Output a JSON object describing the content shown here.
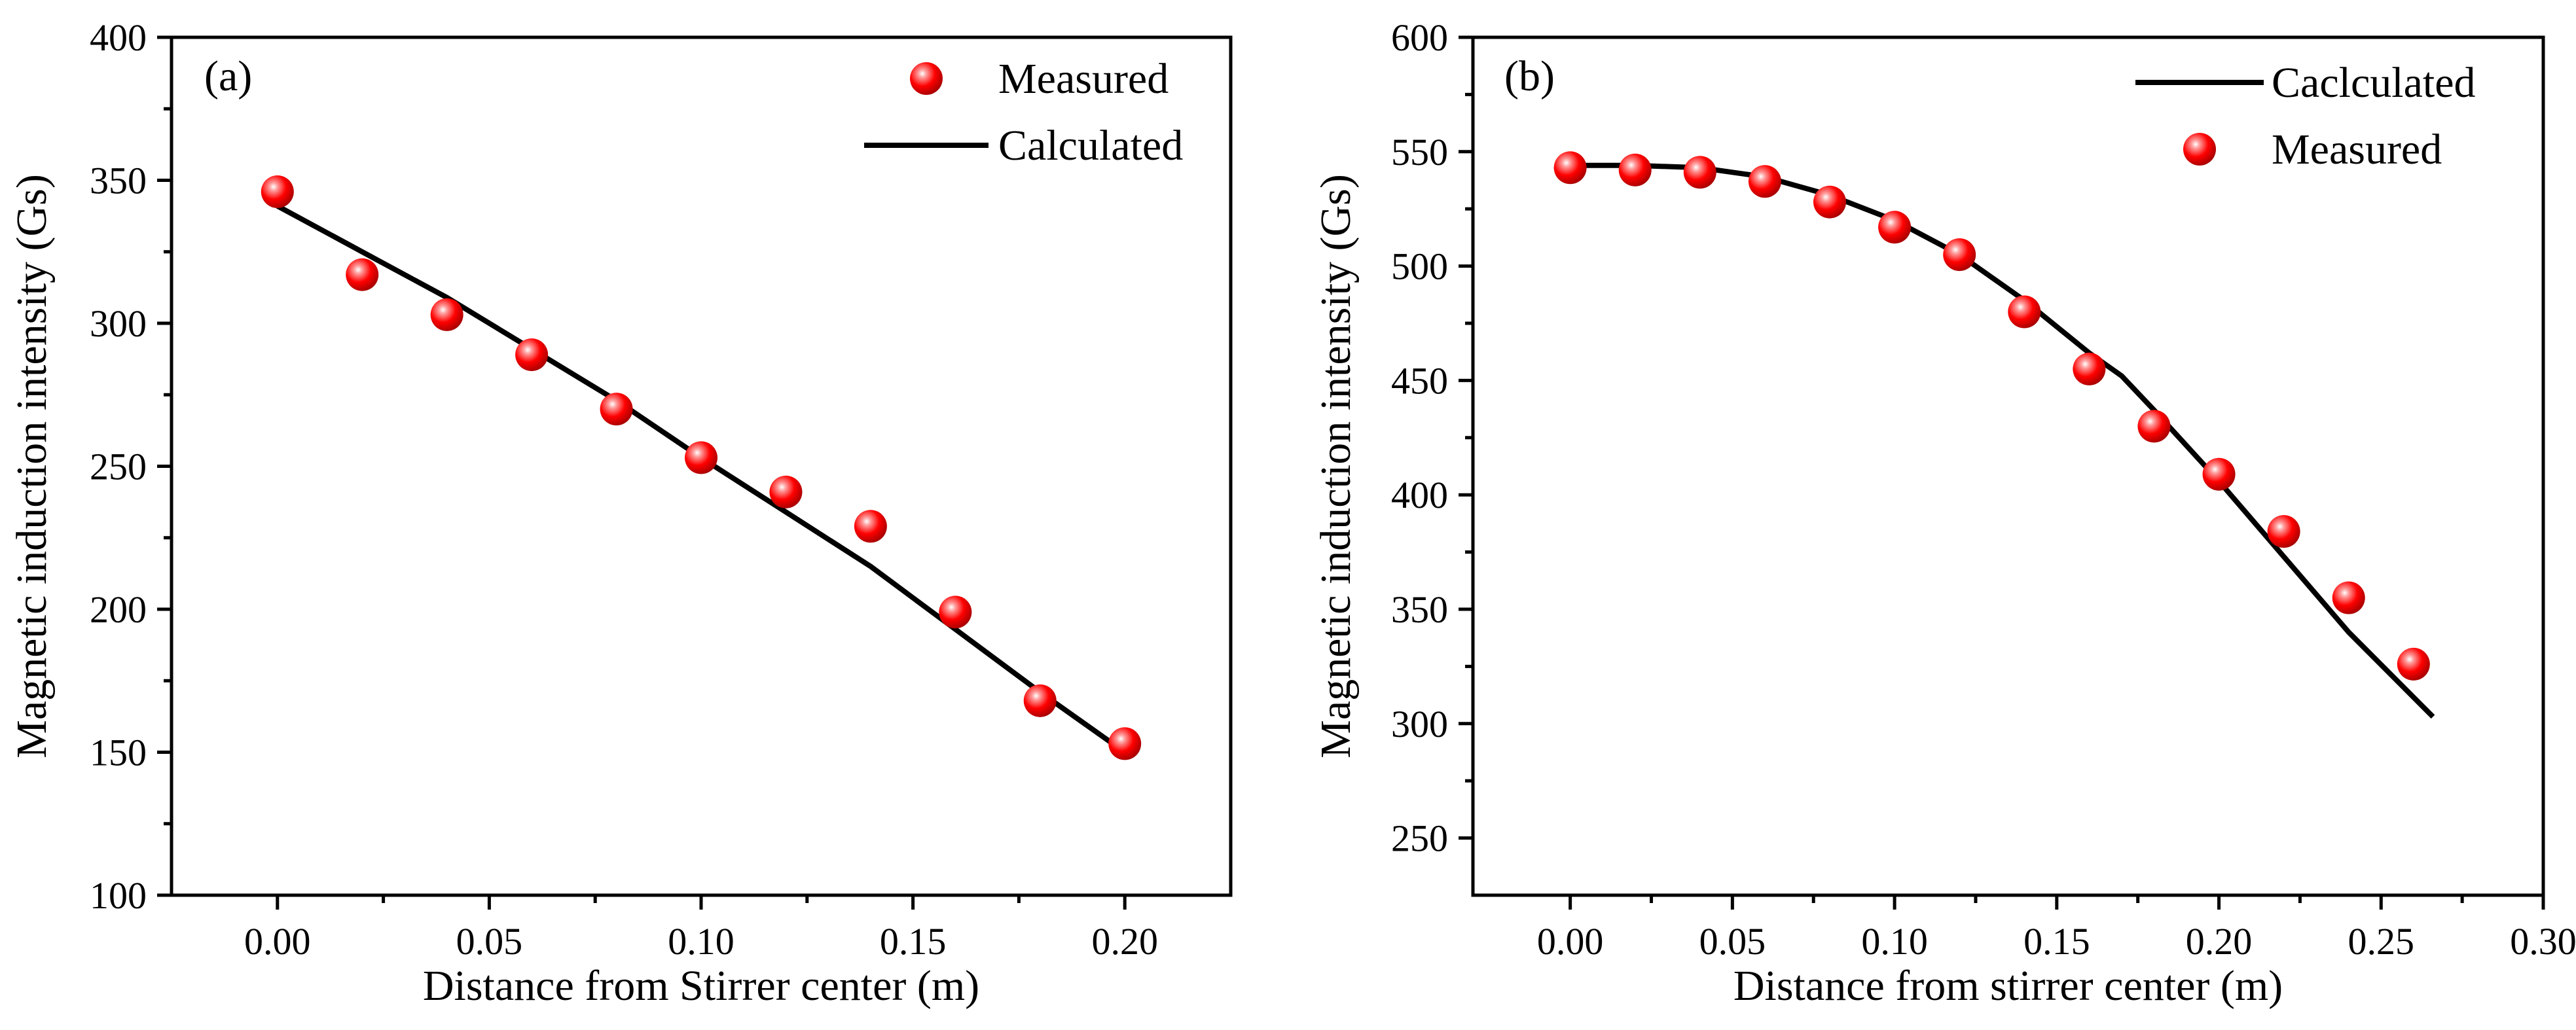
{
  "chart_data": [
    {
      "type": "line",
      "panel_label": "(a)",
      "xlabel": "Distance from Stirrer center (m)",
      "ylabel": "Magnetic induction intensity (Gs)",
      "xlim": [
        -0.025,
        0.225
      ],
      "ylim": [
        100,
        400
      ],
      "xticks": [
        0.0,
        0.05,
        0.1,
        0.15,
        0.2
      ],
      "xtick_labels": [
        "0.00",
        "0.05",
        "0.10",
        "0.15",
        "0.20"
      ],
      "yticks": [
        100,
        150,
        200,
        250,
        300,
        350,
        400
      ],
      "ytick_labels": [
        "100",
        "150",
        "200",
        "250",
        "300",
        "350",
        "400"
      ],
      "legend": {
        "position": "top-right",
        "order": [
          "Measured",
          "Calculated"
        ]
      },
      "series": [
        {
          "name": "Measured",
          "kind": "scatter",
          "color": "#ff0000",
          "x": [
            0.0,
            0.02,
            0.04,
            0.06,
            0.08,
            0.1,
            0.12,
            0.14,
            0.16,
            0.18,
            0.2
          ],
          "y": [
            346,
            317,
            303,
            289,
            270,
            253,
            241,
            229,
            199,
            168,
            153
          ]
        },
        {
          "name": "Calculated",
          "kind": "line",
          "color": "#000000",
          "x": [
            0.0,
            0.02,
            0.04,
            0.06,
            0.08,
            0.1,
            0.12,
            0.14,
            0.16,
            0.18,
            0.2
          ],
          "y": [
            341,
            325,
            309,
            291,
            273,
            253,
            234,
            215,
            193,
            171,
            150
          ]
        }
      ]
    },
    {
      "type": "line",
      "panel_label": "(b)",
      "xlabel": "Distance from stirrer center (m)",
      "ylabel": "Magnetic induction intensity (Gs)",
      "xlim": [
        -0.03,
        0.3
      ],
      "ylim": [
        225,
        600
      ],
      "xticks": [
        0.0,
        0.05,
        0.1,
        0.15,
        0.2,
        0.25,
        0.3
      ],
      "xtick_labels": [
        "0.00",
        "0.05",
        "0.10",
        "0.15",
        "0.20",
        "0.25",
        "0.30"
      ],
      "yticks": [
        250,
        300,
        350,
        400,
        450,
        500,
        550,
        600
      ],
      "ytick_labels": [
        "250",
        "300",
        "350",
        "400",
        "450",
        "500",
        "550",
        "600"
      ],
      "legend": {
        "position": "top-right",
        "order": [
          "Caclculated",
          "Measured"
        ]
      },
      "series": [
        {
          "name": "Measured",
          "kind": "scatter",
          "color": "#ff0000",
          "x": [
            0.0,
            0.02,
            0.04,
            0.06,
            0.08,
            0.1,
            0.12,
            0.14,
            0.16,
            0.18,
            0.2,
            0.22,
            0.24,
            0.26
          ],
          "y": [
            543,
            542,
            541,
            537,
            528,
            517,
            505,
            480,
            455,
            430,
            409,
            384,
            355,
            326
          ]
        },
        {
          "name": "Caclculated",
          "kind": "line",
          "color": "#000000",
          "x": [
            0.0,
            0.02,
            0.04,
            0.06,
            0.08,
            0.1,
            0.12,
            0.14,
            0.16,
            0.17,
            0.18,
            0.2,
            0.22,
            0.24,
            0.266
          ],
          "y": [
            544,
            544,
            543,
            539,
            531,
            520,
            505,
            485,
            462,
            452,
            437,
            406,
            373,
            340,
            303
          ]
        }
      ]
    }
  ]
}
